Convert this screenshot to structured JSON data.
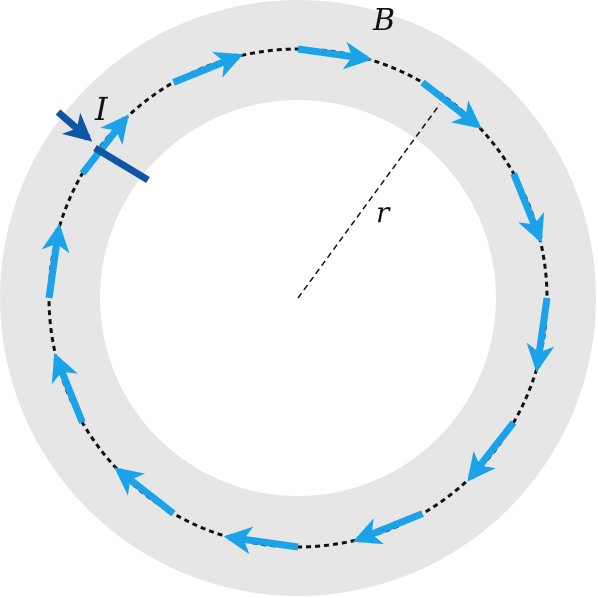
{
  "labels": {
    "field": "B",
    "current": "I",
    "radius": "r"
  },
  "colors": {
    "ring": "#e6e6e6",
    "background": "#ffffff",
    "path": "#111111",
    "field_arrow": "#1aa3e8",
    "current_arrow": "#0d56a6"
  },
  "field_arrow_count": 12,
  "field_direction": "clockwise"
}
